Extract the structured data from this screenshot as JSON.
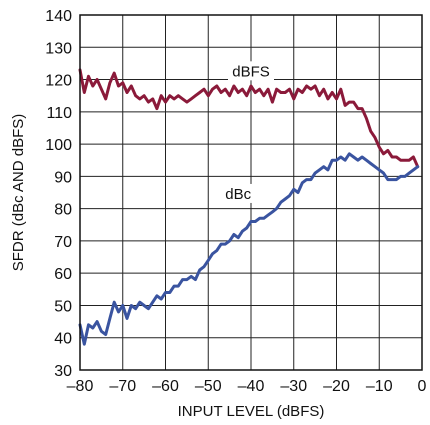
{
  "chart_data": {
    "type": "line",
    "title": "",
    "xlabel": "INPUT LEVEL (dBFS)",
    "ylabel": "SFDR (dBc AND dBFS)",
    "xlim": [
      -80,
      0
    ],
    "ylim": [
      30,
      140
    ],
    "xticks": [
      -80,
      -70,
      -60,
      -50,
      -40,
      -30,
      -20,
      -10,
      0
    ],
    "xtick_labels": [
      "–80",
      "–70",
      "–60",
      "–50",
      "–40",
      "–30",
      "–20",
      "–10",
      "0"
    ],
    "yticks": [
      30,
      40,
      50,
      60,
      70,
      80,
      90,
      100,
      110,
      120,
      130,
      140
    ],
    "ytick_labels": [
      "30",
      "40",
      "50",
      "60",
      "70",
      "80",
      "90",
      "100",
      "110",
      "120",
      "130",
      "140"
    ],
    "grid": true,
    "series": [
      {
        "name": "dBFS",
        "color": "#8b1a3a",
        "label_at": [
          -40,
          121
        ],
        "x": [
          -80,
          -79,
          -78,
          -77,
          -76,
          -75,
          -74,
          -73,
          -72,
          -71,
          -70,
          -69,
          -68,
          -67,
          -66,
          -65,
          -64,
          -63,
          -62,
          -61,
          -60,
          -59,
          -58,
          -57,
          -56,
          -55,
          -54,
          -53,
          -52,
          -51,
          -50,
          -49,
          -48,
          -47,
          -46,
          -45,
          -44,
          -43,
          -42,
          -41,
          -40,
          -39,
          -38,
          -37,
          -36,
          -35,
          -34,
          -33,
          -32,
          -31,
          -30,
          -29,
          -28,
          -27,
          -26,
          -25,
          -24,
          -23,
          -22,
          -21,
          -20,
          -19,
          -18,
          -17,
          -16,
          -15,
          -14,
          -13,
          -12,
          -11,
          -10,
          -9,
          -8,
          -7,
          -6,
          -5,
          -4,
          -3,
          -2,
          -1
        ],
        "values": [
          123,
          116,
          121,
          118,
          120,
          117,
          114,
          119,
          122,
          118,
          119,
          116,
          118,
          115,
          114,
          115,
          113,
          114,
          111,
          115,
          113,
          115,
          114,
          115,
          114,
          113,
          114,
          115,
          116,
          117,
          115,
          117,
          118,
          116,
          117,
          115,
          118,
          116,
          117,
          115,
          118,
          116,
          117,
          115,
          117,
          113,
          117,
          116,
          116,
          117,
          114,
          117,
          116,
          118,
          117,
          118,
          115,
          117,
          114,
          116,
          114,
          117,
          112,
          113,
          113,
          111,
          111,
          108,
          104,
          102,
          99,
          97,
          98,
          96,
          96,
          95,
          95,
          95,
          96,
          93
        ]
      },
      {
        "name": "dBc",
        "color": "#3a54a0",
        "label_at": [
          -43,
          83
        ],
        "x": [
          -80,
          -79,
          -78,
          -77,
          -76,
          -75,
          -74,
          -73,
          -72,
          -71,
          -70,
          -69,
          -68,
          -67,
          -66,
          -65,
          -64,
          -63,
          -62,
          -61,
          -60,
          -59,
          -58,
          -57,
          -56,
          -55,
          -54,
          -53,
          -52,
          -51,
          -50,
          -49,
          -48,
          -47,
          -46,
          -45,
          -44,
          -43,
          -42,
          -41,
          -40,
          -39,
          -38,
          -37,
          -36,
          -35,
          -34,
          -33,
          -32,
          -31,
          -30,
          -29,
          -28,
          -27,
          -26,
          -25,
          -24,
          -23,
          -22,
          -21,
          -20,
          -19,
          -18,
          -17,
          -16,
          -15,
          -14,
          -13,
          -12,
          -11,
          -10,
          -9,
          -8,
          -7,
          -6,
          -5,
          -4,
          -3,
          -2,
          -1
        ],
        "values": [
          44,
          38,
          44,
          43,
          45,
          42,
          41,
          46,
          51,
          48,
          50,
          46,
          50,
          49,
          51,
          50,
          49,
          51,
          53,
          52,
          54,
          54,
          56,
          56,
          58,
          58,
          59,
          58,
          61,
          62,
          64,
          66,
          67,
          69,
          69,
          70,
          72,
          71,
          73,
          74,
          76,
          76,
          77,
          77,
          78,
          79,
          80,
          82,
          83,
          84,
          86,
          85,
          88,
          89,
          89,
          91,
          92,
          93,
          92,
          95,
          95,
          96,
          95,
          97,
          96,
          95,
          96,
          95,
          94,
          93,
          92,
          91,
          89,
          89,
          89,
          90,
          90,
          91,
          92,
          93
        ]
      }
    ]
  }
}
